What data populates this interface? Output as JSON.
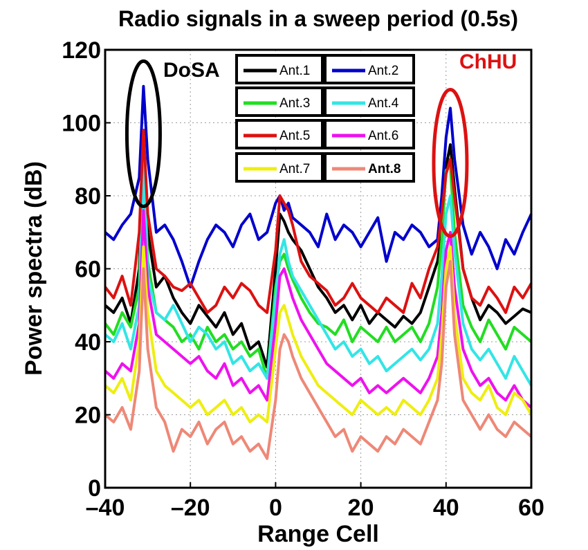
{
  "chart_data": {
    "type": "line",
    "title": "Radio signals in a sweep period (0.5s)",
    "xlabel": "Range Cell",
    "ylabel": "Power spectra (dB)",
    "xlim": [
      -40,
      60
    ],
    "ylim": [
      0,
      120
    ],
    "xticks": [
      -40,
      -20,
      0,
      20,
      40,
      60
    ],
    "yticks": [
      0,
      20,
      40,
      60,
      80,
      100,
      120
    ],
    "xtick_labels": [
      "–40",
      "–20",
      "0",
      "20",
      "40",
      "60"
    ],
    "ytick_labels": [
      "0",
      "20",
      "40",
      "60",
      "80",
      "100",
      "120"
    ],
    "grid": true,
    "legend_position": "top-center",
    "x": [
      -40,
      -38,
      -36,
      -34,
      -32,
      -31,
      -30,
      -28,
      -26,
      -24,
      -22,
      -20,
      -18,
      -16,
      -14,
      -12,
      -10,
      -8,
      -6,
      -4,
      -2,
      0,
      1,
      2,
      3,
      4,
      6,
      8,
      10,
      12,
      14,
      16,
      18,
      20,
      22,
      24,
      26,
      28,
      30,
      32,
      34,
      36,
      38,
      39,
      40,
      41,
      42,
      44,
      46,
      48,
      50,
      52,
      54,
      56,
      58,
      60
    ],
    "series": [
      {
        "name": "Ant.1",
        "color": "#000000",
        "values": [
          50,
          48,
          52,
          45,
          60,
          92,
          70,
          55,
          58,
          52,
          48,
          45,
          50,
          47,
          44,
          48,
          42,
          45,
          38,
          40,
          33,
          60,
          75,
          73,
          70,
          68,
          65,
          60,
          55,
          52,
          48,
          50,
          46,
          50,
          45,
          48,
          46,
          44,
          47,
          45,
          48,
          55,
          62,
          70,
          88,
          94,
          82,
          60,
          52,
          46,
          50,
          48,
          45,
          47,
          49,
          48
        ]
      },
      {
        "name": "Ant.2",
        "color": "#0000cc",
        "values": [
          70,
          68,
          72,
          75,
          85,
          110,
          90,
          70,
          72,
          68,
          62,
          55,
          62,
          68,
          72,
          70,
          66,
          72,
          75,
          68,
          70,
          78,
          80,
          76,
          78,
          74,
          72,
          70,
          66,
          75,
          68,
          72,
          70,
          66,
          70,
          74,
          62,
          70,
          68,
          72,
          70,
          66,
          68,
          80,
          96,
          104,
          90,
          72,
          64,
          70,
          66,
          60,
          68,
          64,
          70,
          75
        ]
      },
      {
        "name": "Ant.3",
        "color": "#22dd22",
        "values": [
          45,
          42,
          48,
          44,
          55,
          94,
          62,
          48,
          46,
          44,
          40,
          42,
          38,
          44,
          40,
          42,
          38,
          40,
          36,
          38,
          30,
          55,
          62,
          64,
          60,
          57,
          52,
          48,
          45,
          44,
          42,
          46,
          40,
          44,
          42,
          40,
          44,
          40,
          42,
          44,
          40,
          45,
          55,
          68,
          87,
          88,
          70,
          50,
          44,
          40,
          46,
          42,
          38,
          44,
          42,
          40
        ]
      },
      {
        "name": "Ant.4",
        "color": "#33e5e5",
        "values": [
          42,
          40,
          45,
          38,
          50,
          90,
          58,
          48,
          46,
          50,
          45,
          40,
          44,
          42,
          38,
          40,
          34,
          36,
          32,
          34,
          30,
          52,
          64,
          68,
          62,
          58,
          54,
          50,
          46,
          42,
          38,
          40,
          36,
          38,
          34,
          36,
          32,
          34,
          36,
          38,
          35,
          38,
          45,
          58,
          75,
          80,
          65,
          45,
          38,
          35,
          38,
          34,
          30,
          36,
          32,
          28
        ]
      },
      {
        "name": "Ant.5",
        "color": "#dd1111",
        "values": [
          55,
          52,
          58,
          50,
          70,
          98,
          75,
          60,
          58,
          55,
          54,
          56,
          52,
          48,
          50,
          55,
          52,
          56,
          54,
          50,
          48,
          65,
          80,
          78,
          76,
          72,
          62,
          58,
          56,
          54,
          50,
          52,
          56,
          52,
          50,
          48,
          52,
          50,
          48,
          56,
          52,
          60,
          66,
          75,
          86,
          90,
          80,
          60,
          52,
          50,
          55,
          52,
          48,
          55,
          52,
          56
        ]
      },
      {
        "name": "Ant.6",
        "color": "#ee11ee",
        "values": [
          32,
          30,
          34,
          32,
          45,
          76,
          55,
          42,
          40,
          38,
          36,
          34,
          36,
          32,
          30,
          34,
          28,
          30,
          26,
          28,
          24,
          45,
          58,
          60,
          56,
          52,
          46,
          42,
          38,
          34,
          32,
          30,
          28,
          30,
          26,
          28,
          26,
          28,
          30,
          28,
          26,
          30,
          36,
          48,
          65,
          70,
          55,
          38,
          32,
          28,
          30,
          26,
          24,
          28,
          24,
          22
        ]
      },
      {
        "name": "Ant.7",
        "color": "#eeee11",
        "values": [
          28,
          26,
          30,
          24,
          40,
          66,
          48,
          32,
          28,
          26,
          24,
          22,
          24,
          20,
          22,
          24,
          20,
          22,
          18,
          20,
          18,
          38,
          48,
          50,
          46,
          42,
          36,
          32,
          28,
          26,
          24,
          22,
          20,
          24,
          22,
          20,
          22,
          20,
          24,
          22,
          20,
          24,
          30,
          42,
          60,
          66,
          48,
          30,
          26,
          24,
          28,
          22,
          20,
          26,
          24,
          20
        ]
      },
      {
        "name": "Ant.8",
        "color": "#ee8877",
        "values": [
          20,
          18,
          22,
          16,
          32,
          60,
          38,
          22,
          18,
          10,
          16,
          14,
          18,
          12,
          16,
          18,
          12,
          14,
          10,
          12,
          8,
          24,
          38,
          42,
          40,
          36,
          30,
          26,
          22,
          18,
          14,
          16,
          10,
          14,
          12,
          10,
          14,
          12,
          16,
          14,
          12,
          18,
          24,
          34,
          55,
          62,
          42,
          24,
          20,
          16,
          20,
          16,
          14,
          18,
          16,
          14
        ]
      }
    ],
    "annotations": [
      {
        "text": "DoSA",
        "color": "#000000",
        "ellipse_color": "#000000",
        "x": -31,
        "y": 97
      },
      {
        "text": "ChHU",
        "color": "#dd1111",
        "ellipse_color": "#dd1111",
        "x": 41,
        "y": 89
      }
    ]
  }
}
